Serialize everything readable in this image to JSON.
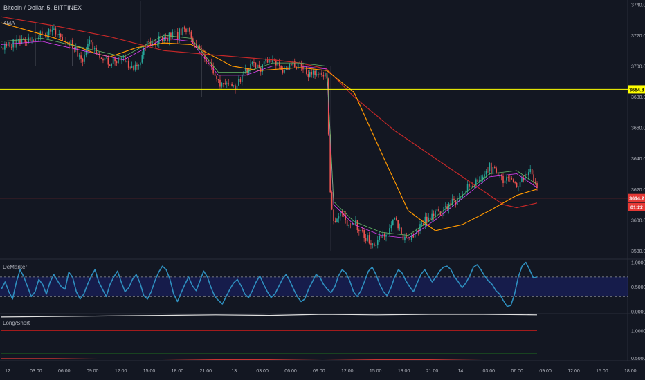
{
  "header": {
    "symbol": "Bitcoin / Dollar",
    "interval": "5",
    "exchange": "BITFINEX",
    "full_title": "Bitcoin / Dollar, 5, BITFINEX",
    "indicator": "4MA"
  },
  "colors": {
    "background": "#131722",
    "grid": "#1e222d",
    "up": "#26a69a",
    "down": "#ef5350",
    "ma_red": "#c62828",
    "ma_orange": "#ff9800",
    "ma_pink": "#e040fb",
    "ma_green": "#66bb6a",
    "hline_yellow": "#ffff00",
    "hline_red": "#e53935",
    "demarker_line": "#2f8fbf",
    "demarker_band": "#1a237e",
    "axis_text": "#b2b5be"
  },
  "chart_data": [
    {
      "type": "candlestick",
      "name": "main",
      "ylim": [
        3575,
        3742
      ],
      "y_ticks": [
        "3740.0",
        "3720.0",
        "3700.0",
        "3680.0",
        "3660.0",
        "3640.0",
        "3620.0",
        "3600.0",
        "3580.0"
      ],
      "y_tick_values": [
        3740,
        3720,
        3700,
        3680,
        3660,
        3640,
        3620,
        3600,
        3580
      ],
      "x_labels": [
        "12",
        "03:00",
        "06:00",
        "09:00",
        "12:00",
        "15:00",
        "18:00",
        "21:00",
        "13",
        "03:00",
        "06:00",
        "09:00",
        "12:00",
        "15:00",
        "18:00",
        "21:00",
        "14",
        "03:00",
        "06:00",
        "09:00",
        "12:00",
        "15:00",
        "18:00"
      ],
      "close_path": [
        [
          0,
          3712
        ],
        [
          4,
          3718
        ],
        [
          8,
          3722
        ],
        [
          10,
          3716
        ],
        [
          12,
          3704
        ],
        [
          13,
          3715
        ],
        [
          14,
          3710
        ],
        [
          16,
          3702
        ],
        [
          18,
          3706
        ],
        [
          19,
          3700
        ],
        [
          20,
          3698
        ],
        [
          21,
          3710
        ],
        [
          22,
          3716
        ],
        [
          24,
          3718
        ],
        [
          26,
          3720
        ],
        [
          27,
          3726
        ],
        [
          28,
          3718
        ],
        [
          29,
          3712
        ],
        [
          30,
          3705
        ],
        [
          31,
          3701
        ],
        [
          32,
          3688
        ],
        [
          33,
          3690
        ],
        [
          34,
          3686
        ],
        [
          35,
          3689
        ],
        [
          36,
          3697
        ],
        [
          37,
          3701
        ],
        [
          38,
          3698
        ],
        [
          39,
          3702
        ],
        [
          40,
          3704
        ],
        [
          41,
          3698
        ],
        [
          42,
          3697
        ],
        [
          43,
          3701
        ],
        [
          44,
          3700
        ],
        [
          45,
          3696
        ],
        [
          46,
          3694
        ],
        [
          47,
          3696
        ],
        [
          48,
          3692
        ],
        [
          48.5,
          3620
        ],
        [
          49,
          3598
        ],
        [
          50,
          3604
        ],
        [
          51,
          3597
        ],
        [
          52,
          3599
        ],
        [
          53,
          3592
        ],
        [
          54,
          3588
        ],
        [
          55,
          3585
        ],
        [
          56,
          3589
        ],
        [
          57,
          3594
        ],
        [
          58,
          3599
        ],
        [
          59,
          3590
        ],
        [
          60,
          3586
        ],
        [
          61,
          3592
        ],
        [
          62,
          3597
        ],
        [
          63,
          3602
        ],
        [
          64,
          3606
        ],
        [
          65,
          3604
        ],
        [
          66,
          3610
        ],
        [
          67,
          3612
        ],
        [
          68,
          3616
        ],
        [
          69,
          3622
        ],
        [
          70,
          3626
        ],
        [
          71,
          3628
        ],
        [
          72,
          3634
        ],
        [
          73,
          3630
        ],
        [
          74,
          3626
        ],
        [
          75,
          3629
        ],
        [
          76,
          3622
        ],
        [
          77,
          3626
        ],
        [
          78,
          3636
        ],
        [
          78.5,
          3625
        ],
        [
          79,
          3619
        ]
      ],
      "series": [
        {
          "name": "",
          "color": "#c62828",
          "x": [
            0,
            8,
            16,
            24,
            32,
            40,
            44,
            48,
            52,
            58,
            64,
            70,
            74,
            76,
            79
          ],
          "values": [
            3732,
            3726,
            3719,
            3710,
            3707,
            3704,
            3702,
            3698,
            3680,
            3658,
            3640,
            3622,
            3610,
            3608,
            3611
          ]
        },
        {
          "name": "",
          "color": "#ff9800",
          "x": [
            0,
            8,
            14,
            16,
            20,
            24,
            28,
            34,
            38,
            44,
            48,
            52,
            56,
            60,
            64,
            68,
            72,
            76,
            79
          ],
          "values": [
            3728,
            3718,
            3708,
            3706,
            3712,
            3715,
            3714,
            3700,
            3697,
            3699,
            3697,
            3683,
            3644,
            3606,
            3593,
            3597,
            3606,
            3616,
            3620
          ]
        },
        {
          "name": "",
          "color": "#e040fb",
          "x": [
            0,
            6,
            12,
            18,
            24,
            28,
            32,
            36,
            40,
            44,
            48,
            49,
            52,
            56,
            60,
            64,
            68,
            72,
            76,
            79
          ],
          "values": [
            3714,
            3716,
            3710,
            3704,
            3718,
            3716,
            3694,
            3694,
            3700,
            3700,
            3698,
            3610,
            3597,
            3590,
            3588,
            3600,
            3614,
            3628,
            3630,
            3621
          ]
        },
        {
          "name": "",
          "color": "#66bb6a",
          "x": [
            0,
            6,
            12,
            18,
            24,
            28,
            32,
            36,
            40,
            44,
            48,
            49,
            52,
            56,
            60,
            64,
            68,
            72,
            76,
            79
          ],
          "values": [
            3716,
            3718,
            3712,
            3706,
            3720,
            3718,
            3696,
            3696,
            3702,
            3702,
            3700,
            3612,
            3599,
            3592,
            3590,
            3602,
            3616,
            3630,
            3632,
            3623
          ]
        }
      ],
      "horizontal_lines": [
        {
          "value": 3684.8,
          "label": "3684.8",
          "color": "#ffff00"
        },
        {
          "value": 3614.2,
          "label": "3614.2",
          "color": "#e53935"
        }
      ],
      "countdown_label": "01:22",
      "grid": false
    },
    {
      "type": "line",
      "name": "DeMarker",
      "title": "DeMarker",
      "ylim": [
        -0.02,
        1.05
      ],
      "y_ticks": [
        "1.0000",
        "0.5000",
        "0.0000"
      ],
      "y_tick_values": [
        1.0,
        0.5,
        0.0
      ],
      "band": [
        0.3,
        0.7
      ],
      "values": [
        0.45,
        0.6,
        0.4,
        0.25,
        0.6,
        0.85,
        0.7,
        0.5,
        0.3,
        0.4,
        0.65,
        0.55,
        0.35,
        0.6,
        0.75,
        0.62,
        0.5,
        0.45,
        0.8,
        0.7,
        0.4,
        0.25,
        0.35,
        0.55,
        0.72,
        0.85,
        0.6,
        0.45,
        0.3,
        0.55,
        0.7,
        0.82,
        0.6,
        0.4,
        0.48,
        0.65,
        0.75,
        0.58,
        0.32,
        0.25,
        0.4,
        0.62,
        0.8,
        0.92,
        0.85,
        0.65,
        0.35,
        0.2,
        0.38,
        0.55,
        0.7,
        0.52,
        0.42,
        0.62,
        0.82,
        0.7,
        0.48,
        0.3,
        0.22,
        0.15,
        0.3,
        0.45,
        0.58,
        0.65,
        0.52,
        0.35,
        0.28,
        0.42,
        0.6,
        0.72,
        0.55,
        0.4,
        0.28,
        0.35,
        0.5,
        0.65,
        0.75,
        0.62,
        0.45,
        0.3,
        0.2,
        0.25,
        0.45,
        0.6,
        0.75,
        0.7,
        0.55,
        0.45,
        0.38,
        0.5,
        0.72,
        0.85,
        0.78,
        0.62,
        0.4,
        0.3,
        0.42,
        0.62,
        0.82,
        0.9,
        0.75,
        0.55,
        0.4,
        0.32,
        0.48,
        0.7,
        0.85,
        0.78,
        0.62,
        0.5,
        0.4,
        0.58,
        0.75,
        0.85,
        0.72,
        0.6,
        0.7,
        0.82,
        0.9,
        0.92,
        0.85,
        0.7,
        0.6,
        0.48,
        0.58,
        0.72,
        0.9,
        0.95,
        0.85,
        0.72,
        0.62,
        0.55,
        0.42,
        0.35,
        0.22,
        0.1,
        0.12,
        0.35,
        0.7,
        0.92,
        1.0,
        0.85,
        0.68,
        0.7
      ]
    },
    {
      "type": "line",
      "name": "Long/Short",
      "title": "Long/Short",
      "ylim": [
        0.45,
        1.3
      ],
      "y_ticks": [
        "1.0000",
        "0.5000"
      ],
      "y_tick_values": [
        1.0,
        0.5
      ],
      "series": [
        {
          "name": "",
          "color": "#e0e0e0",
          "values": [
            1.25,
            1.26,
            1.27,
            1.28,
            1.29,
            1.28,
            1.3,
            1.29,
            1.3,
            1.3,
            1.29
          ]
        },
        {
          "name": "",
          "color": "#b71c1c",
          "values": [
            1.0,
            1.0,
            1.0,
            1.0,
            1.0,
            1.0,
            1.0,
            1.0,
            1.0,
            1.0,
            1.0
          ]
        },
        {
          "name": "",
          "color": "#1b5e20",
          "values": [
            0.58,
            0.58,
            0.58,
            0.58,
            0.58,
            0.58,
            0.58,
            0.58,
            0.58,
            0.58,
            0.58
          ]
        },
        {
          "name": "",
          "color": "#e53935",
          "values": [
            0.49,
            0.49,
            0.48,
            0.48,
            0.47,
            0.47,
            0.48,
            0.47,
            0.47,
            0.48,
            0.48
          ]
        }
      ]
    }
  ]
}
